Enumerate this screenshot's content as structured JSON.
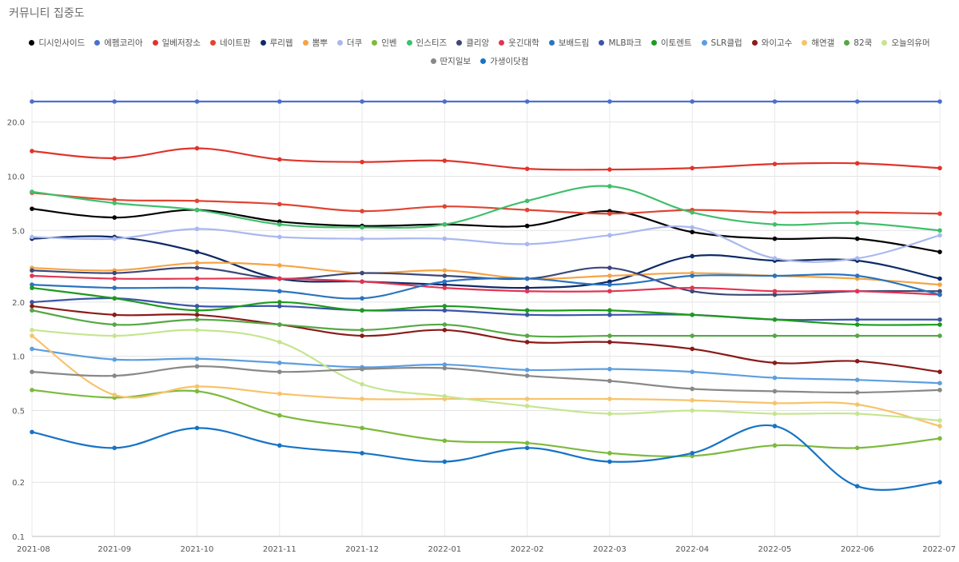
{
  "chart_data": {
    "type": "line",
    "title": "커뮤니티 집중도",
    "xlabel": "",
    "ylabel": "",
    "yscale": "log",
    "ylim": [
      0.1,
      30
    ],
    "yticks": [
      0.1,
      0.2,
      0.5,
      1.0,
      2.0,
      5.0,
      10.0,
      20.0
    ],
    "ytick_labels": [
      "0.1",
      "0.2",
      "0.5",
      "1.0",
      "2.0",
      "5.0",
      "10.0",
      "20.0"
    ],
    "grid": true,
    "legend_position": "top",
    "categories": [
      "2021-08",
      "2021-09",
      "2021-10",
      "2021-11",
      "2021-12",
      "2022-01",
      "2022-02",
      "2022-03",
      "2022-04",
      "2022-05",
      "2022-06",
      "2022-07"
    ],
    "series": [
      {
        "name": "디시인사이드",
        "color": "#000000",
        "values": [
          6.6,
          5.9,
          6.5,
          5.6,
          5.3,
          5.4,
          5.3,
          6.4,
          4.9,
          4.5,
          4.5,
          3.8
        ]
      },
      {
        "name": "에펨코리아",
        "color": "#4a6fcf",
        "values": [
          26.0,
          26.0,
          26.0,
          26.0,
          26.0,
          26.0,
          26.0,
          26.0,
          26.0,
          26.0,
          26.0,
          26.0
        ]
      },
      {
        "name": "일베저장소",
        "color": "#e0342b",
        "values": [
          13.8,
          12.6,
          14.3,
          12.4,
          12.0,
          12.2,
          11.0,
          10.9,
          11.1,
          11.7,
          11.8,
          11.1
        ]
      },
      {
        "name": "네이트판",
        "color": "#e04431",
        "values": [
          8.1,
          7.4,
          7.3,
          7.0,
          6.4,
          6.8,
          6.5,
          6.2,
          6.5,
          6.3,
          6.3,
          6.2
        ]
      },
      {
        "name": "루리웹",
        "color": "#0f2a66",
        "values": [
          4.5,
          4.6,
          3.8,
          2.7,
          2.6,
          2.5,
          2.4,
          2.6,
          3.6,
          3.4,
          3.4,
          2.7
        ]
      },
      {
        "name": "뽐뿌",
        "color": "#f5a445",
        "values": [
          3.1,
          3.0,
          3.3,
          3.2,
          2.9,
          3.0,
          2.7,
          2.8,
          2.9,
          2.8,
          2.7,
          2.5
        ]
      },
      {
        "name": "더쿠",
        "color": "#a9b8f0",
        "values": [
          4.6,
          4.5,
          5.1,
          4.6,
          4.5,
          4.5,
          4.2,
          4.7,
          5.2,
          3.5,
          3.5,
          4.7
        ]
      },
      {
        "name": "인벤",
        "color": "#7cba3c",
        "values": [
          0.65,
          0.59,
          0.64,
          0.47,
          0.4,
          0.34,
          0.33,
          0.29,
          0.28,
          0.32,
          0.31,
          0.35
        ]
      },
      {
        "name": "인스티즈",
        "color": "#3fbf6a",
        "values": [
          8.2,
          7.1,
          6.5,
          5.4,
          5.2,
          5.4,
          7.3,
          8.8,
          6.3,
          5.4,
          5.5,
          5.0
        ]
      },
      {
        "name": "클리앙",
        "color": "#3d4878",
        "values": [
          3.0,
          2.9,
          3.1,
          2.7,
          2.9,
          2.8,
          2.7,
          3.1,
          2.3,
          2.2,
          2.3,
          2.3
        ]
      },
      {
        "name": "웃긴대학",
        "color": "#e23552",
        "values": [
          2.8,
          2.7,
          2.7,
          2.7,
          2.6,
          2.4,
          2.3,
          2.3,
          2.4,
          2.3,
          2.3,
          2.2
        ]
      },
      {
        "name": "보배드림",
        "color": "#2a74c0",
        "values": [
          2.5,
          2.4,
          2.4,
          2.3,
          2.1,
          2.6,
          2.7,
          2.5,
          2.8,
          2.8,
          2.8,
          2.2
        ]
      },
      {
        "name": "MLB파크",
        "color": "#3a55a8",
        "values": [
          2.0,
          2.1,
          1.9,
          1.9,
          1.8,
          1.8,
          1.7,
          1.7,
          1.7,
          1.6,
          1.6,
          1.6
        ]
      },
      {
        "name": "이토렌트",
        "color": "#1e9a1e",
        "values": [
          2.4,
          2.1,
          1.8,
          2.0,
          1.8,
          1.9,
          1.8,
          1.8,
          1.7,
          1.6,
          1.5,
          1.5
        ]
      },
      {
        "name": "SLR클럽",
        "color": "#5c9ee0",
        "values": [
          1.1,
          0.96,
          0.97,
          0.92,
          0.87,
          0.9,
          0.84,
          0.85,
          0.82,
          0.76,
          0.74,
          0.71
        ]
      },
      {
        "name": "와이고수",
        "color": "#8b1a1a",
        "values": [
          1.9,
          1.7,
          1.7,
          1.5,
          1.3,
          1.4,
          1.2,
          1.2,
          1.1,
          0.92,
          0.94,
          0.82
        ]
      },
      {
        "name": "해연갤",
        "color": "#f7c36b",
        "values": [
          1.3,
          0.61,
          0.68,
          0.62,
          0.58,
          0.58,
          0.58,
          0.58,
          0.57,
          0.55,
          0.54,
          0.41
        ]
      },
      {
        "name": "82쿡",
        "color": "#55a845",
        "values": [
          1.8,
          1.5,
          1.6,
          1.5,
          1.4,
          1.5,
          1.3,
          1.3,
          1.3,
          1.3,
          1.3,
          1.3
        ]
      },
      {
        "name": "오늘의유머",
        "color": "#c5e58f",
        "values": [
          1.4,
          1.3,
          1.4,
          1.2,
          0.7,
          0.6,
          0.53,
          0.48,
          0.5,
          0.48,
          0.48,
          0.44
        ]
      },
      {
        "name": "딴지일보",
        "color": "#888888",
        "values": [
          0.82,
          0.78,
          0.88,
          0.82,
          0.85,
          0.86,
          0.78,
          0.73,
          0.66,
          0.64,
          0.63,
          0.65
        ]
      },
      {
        "name": "가생이닷컴",
        "color": "#1673c5",
        "values": [
          0.38,
          0.31,
          0.4,
          0.32,
          0.29,
          0.26,
          0.31,
          0.26,
          0.29,
          0.41,
          0.19,
          0.2
        ]
      }
    ]
  }
}
